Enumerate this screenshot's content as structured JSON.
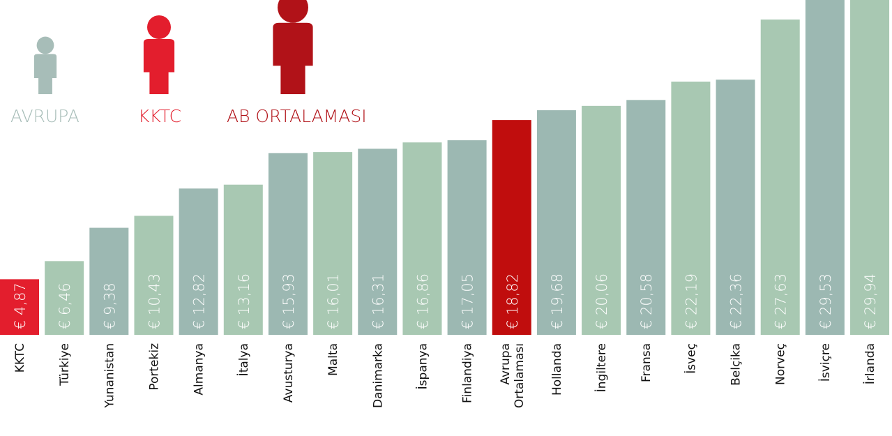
{
  "chart_data": {
    "type": "bar",
    "legend": [
      {
        "name": "AVRUPA",
        "color": "#a7bdb8"
      },
      {
        "name": "KKTC",
        "color": "#e31e2d"
      },
      {
        "name": "AB ORTALAMASI",
        "color": "#b11218"
      }
    ],
    "categories": [
      "KKTC",
      "Türkiye",
      "Yunanistan",
      "Portekiz",
      "Almanya",
      "İtalya",
      "Avusturya",
      "Malta",
      "Danimarka",
      "İspanya",
      "Finlandiya",
      "Avrupa Ortalaması",
      "Hollanda",
      "İngiltere",
      "Fransa",
      "İsveç",
      "Belçika",
      "Norveç",
      "İsviçre",
      "İrlanda"
    ],
    "values": [
      4.87,
      6.46,
      9.38,
      10.43,
      12.82,
      13.16,
      15.93,
      16.01,
      16.31,
      16.86,
      17.05,
      18.82,
      19.68,
      20.06,
      20.58,
      22.19,
      22.36,
      27.63,
      29.53,
      29.94
    ],
    "value_labels": [
      "€ 4,87",
      "€ 6,46",
      "€ 9,38",
      "€ 10,43",
      "€ 12,82",
      "€ 13,16",
      "€ 15,93",
      "€ 16,01",
      "€ 16,31",
      "€ 16,86",
      "€ 17,05",
      "€ 18,82",
      "€ 19,68",
      "€ 20,06",
      "€ 20,58",
      "€ 22,19",
      "€ 22,36",
      "€ 27,63",
      "€ 29,53",
      "€ 29,94"
    ],
    "colors": [
      "#e31e2d",
      "#a8c8b2",
      "#9cb8b2",
      "#a8c8b2",
      "#9cb8b2",
      "#a8c8b2",
      "#9cb8b2",
      "#a8c8b2",
      "#9cb8b2",
      "#a8c8b2",
      "#9cb8b2",
      "#c00d0d",
      "#9cb8b2",
      "#a8c8b2",
      "#9cb8b2",
      "#a8c8b2",
      "#9cb8b2",
      "#a8c8b2",
      "#9cb8b2",
      "#a8c8b2"
    ]
  }
}
